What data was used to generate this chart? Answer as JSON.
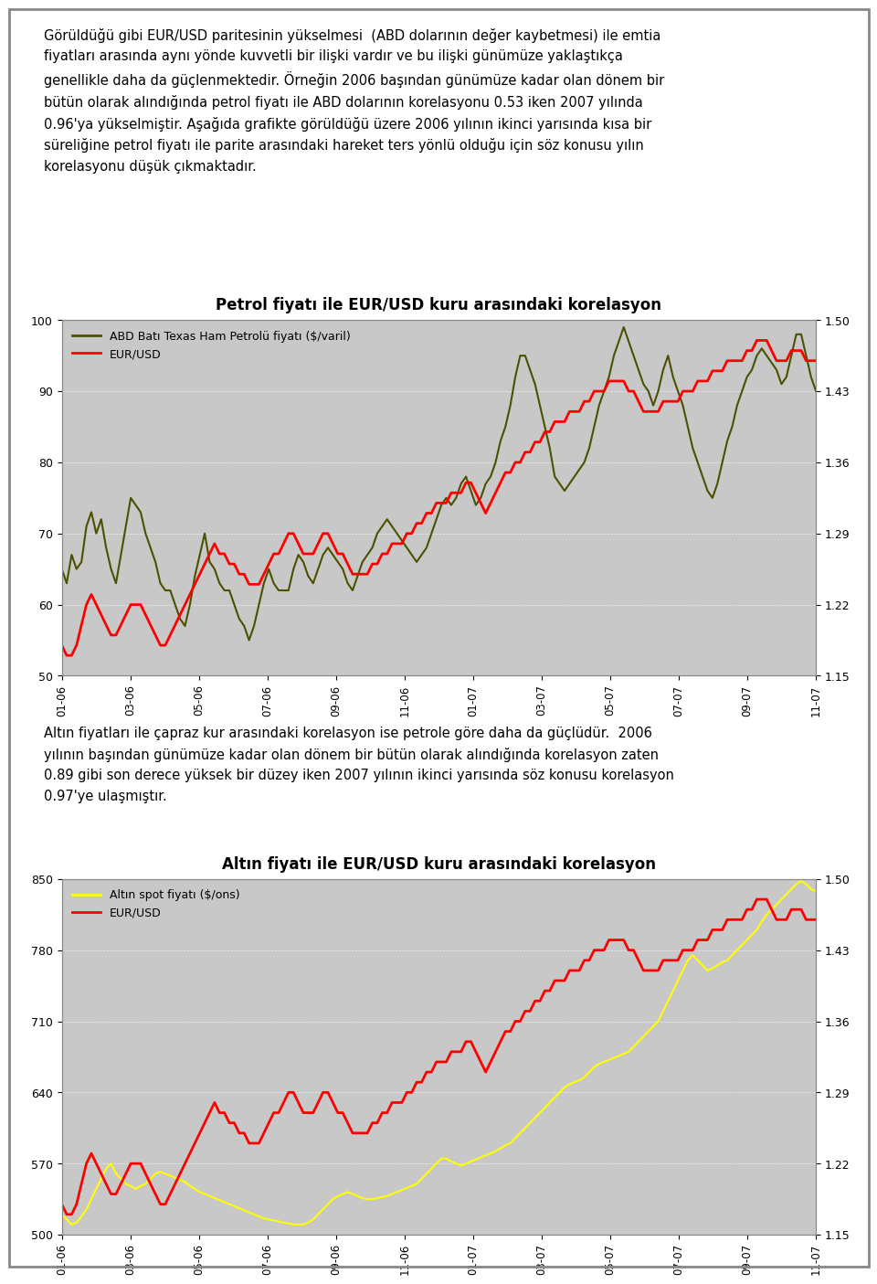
{
  "page_bg": "#ffffff",
  "border_color": "#888888",
  "chart_bg": "#c8c8c8",
  "text_color": "#000000",
  "paragraph1": "Görüldüğü gibi EUR/USD paritesinin yükselmesi  (ABD dolarının değer kaybetmesi) ile emtia\nfiyatları arasında aynı yönde kuvvetli bir ilişki vardır ve bu ilişki günümüze yaklaştıkça\ngenellikle daha da güçlenmektedir. Örneğin 2006 başından günümüze kadar olan dönem bir\nbütün olarak alındığında petrol fiyatı ile ABD dolarının korelasyonu 0.53 iken 2007 yılında\n0.96'ya yükselmiştir. Aşağıda grafikte görüldüğü üzere 2006 yılının ikinci yarısında kısa bir\nsüreliğine petrol fiyatı ile parite arasındaki hareket ters yönlü olduğu için söz konusu yılın\nkorelasyonu düşük çıkmaktadır.",
  "paragraph2": "Altın fiyatları ile çapraz kur arasındaki korelasyon ise petrole göre daha da güçlüdür.  2006\nyılının başından günümüze kadar olan dönem bir bütün olarak alındığında korelasyon zaten\n0.89 gibi son derece yüksek bir düzey iken 2007 yılının ikinci yarısında söz konusu korelasyon\n0.97'ye ulaşmıştır.",
  "chart1": {
    "title": "Petrol fiyatı ile EUR/USD kuru arasındaki korelasyon",
    "left_label": "",
    "right_label": "",
    "yleft_min": 50,
    "yleft_max": 100,
    "yright_min": 1.15,
    "yright_max": 1.5,
    "ytick_left": [
      50,
      60,
      70,
      80,
      90,
      100
    ],
    "ytick_right": [
      1.15,
      1.22,
      1.29,
      1.36,
      1.43,
      1.5
    ],
    "xtick_labels": [
      "01-06",
      "03-06",
      "05-06",
      "07-06",
      "09-06",
      "11-06",
      "01-07",
      "03-07",
      "05-07",
      "07-07",
      "09-07",
      "11-07"
    ],
    "line1_color": "#4d5000",
    "line1_label": "ABD Batı Texas Ham Petrolü fiyatı ($/varil)",
    "line2_color": "#ff0000",
    "line2_label": "EUR/USD",
    "oil_data": [
      65,
      63,
      67,
      65,
      66,
      71,
      73,
      70,
      72,
      68,
      65,
      63,
      67,
      71,
      75,
      74,
      73,
      70,
      68,
      66,
      63,
      62,
      62,
      60,
      58,
      57,
      60,
      64,
      67,
      70,
      66,
      65,
      63,
      62,
      62,
      60,
      58,
      57,
      55,
      57,
      60,
      63,
      65,
      63,
      62,
      62,
      62,
      65,
      67,
      66,
      64,
      63,
      65,
      67,
      68,
      67,
      66,
      65,
      63,
      62,
      64,
      66,
      67,
      68,
      70,
      71,
      72,
      71,
      70,
      69,
      68,
      67,
      66,
      67,
      68,
      70,
      72,
      74,
      75,
      74,
      75,
      77,
      78,
      76,
      74,
      75,
      77,
      78,
      80,
      83,
      85,
      88,
      92,
      95,
      95,
      93,
      91,
      88,
      85,
      82,
      78,
      77,
      76,
      77,
      78,
      79,
      80,
      82,
      85,
      88,
      90,
      92,
      95,
      97,
      99,
      97,
      95,
      93,
      91,
      90,
      88,
      90,
      93,
      95,
      92,
      90,
      88,
      85,
      82,
      80,
      78,
      76,
      75,
      77,
      80,
      83,
      85,
      88,
      90,
      92,
      93,
      95,
      96,
      95,
      94,
      93,
      91,
      92,
      95,
      98,
      98,
      95,
      92,
      90
    ],
    "eurusd_data": [
      1.18,
      1.17,
      1.17,
      1.18,
      1.2,
      1.22,
      1.23,
      1.22,
      1.21,
      1.2,
      1.19,
      1.19,
      1.2,
      1.21,
      1.22,
      1.22,
      1.22,
      1.21,
      1.2,
      1.19,
      1.18,
      1.18,
      1.19,
      1.2,
      1.21,
      1.22,
      1.23,
      1.24,
      1.25,
      1.26,
      1.27,
      1.28,
      1.27,
      1.27,
      1.26,
      1.26,
      1.25,
      1.25,
      1.24,
      1.24,
      1.24,
      1.25,
      1.26,
      1.27,
      1.27,
      1.28,
      1.29,
      1.29,
      1.28,
      1.27,
      1.27,
      1.27,
      1.28,
      1.29,
      1.29,
      1.28,
      1.27,
      1.27,
      1.26,
      1.25,
      1.25,
      1.25,
      1.25,
      1.26,
      1.26,
      1.27,
      1.27,
      1.28,
      1.28,
      1.28,
      1.29,
      1.29,
      1.3,
      1.3,
      1.31,
      1.31,
      1.32,
      1.32,
      1.32,
      1.33,
      1.33,
      1.33,
      1.34,
      1.34,
      1.33,
      1.32,
      1.31,
      1.32,
      1.33,
      1.34,
      1.35,
      1.35,
      1.36,
      1.36,
      1.37,
      1.37,
      1.38,
      1.38,
      1.39,
      1.39,
      1.4,
      1.4,
      1.4,
      1.41,
      1.41,
      1.41,
      1.42,
      1.42,
      1.43,
      1.43,
      1.43,
      1.44,
      1.44,
      1.44,
      1.44,
      1.43,
      1.43,
      1.42,
      1.41,
      1.41,
      1.41,
      1.41,
      1.42,
      1.42,
      1.42,
      1.42,
      1.43,
      1.43,
      1.43,
      1.44,
      1.44,
      1.44,
      1.45,
      1.45,
      1.45,
      1.46,
      1.46,
      1.46,
      1.46,
      1.47,
      1.47,
      1.48,
      1.48,
      1.48,
      1.47,
      1.46,
      1.46,
      1.46,
      1.47,
      1.47,
      1.47,
      1.46,
      1.46,
      1.46
    ]
  },
  "chart2": {
    "title": "Altın fiyatı ile EUR/USD kuru arasındaki korelasyon",
    "yleft_min": 500,
    "yleft_max": 850,
    "yright_min": 1.15,
    "yright_max": 1.5,
    "ytick_left": [
      500,
      570,
      640,
      710,
      780,
      850
    ],
    "ytick_right": [
      1.15,
      1.22,
      1.29,
      1.36,
      1.43,
      1.5
    ],
    "xtick_labels": [
      "01-06",
      "03-06",
      "05-06",
      "07-06",
      "09-06",
      "11-06",
      "01-07",
      "03-07",
      "05-07",
      "07-07",
      "09-07",
      "11-07"
    ],
    "line1_color": "#ffff00",
    "line1_label": "Altın spot fiyatı ($/ons)",
    "line2_color": "#ff0000",
    "line2_label": "EUR/USD",
    "gold_data": [
      520,
      515,
      510,
      512,
      518,
      525,
      535,
      545,
      555,
      565,
      570,
      560,
      555,
      550,
      548,
      545,
      548,
      550,
      555,
      560,
      562,
      560,
      558,
      556,
      554,
      552,
      548,
      545,
      542,
      540,
      538,
      536,
      534,
      532,
      530,
      528,
      526,
      524,
      522,
      520,
      518,
      516,
      515,
      514,
      513,
      512,
      511,
      510,
      510,
      510,
      512,
      515,
      520,
      525,
      530,
      535,
      538,
      540,
      542,
      540,
      538,
      536,
      535,
      535,
      536,
      537,
      538,
      540,
      542,
      544,
      546,
      548,
      550,
      555,
      560,
      565,
      570,
      575,
      575,
      572,
      570,
      568,
      570,
      572,
      574,
      576,
      578,
      580,
      582,
      585,
      588,
      590,
      595,
      600,
      605,
      610,
      615,
      620,
      625,
      630,
      635,
      640,
      645,
      648,
      650,
      652,
      655,
      660,
      665,
      668,
      670,
      672,
      674,
      676,
      678,
      680,
      685,
      690,
      695,
      700,
      705,
      710,
      720,
      730,
      740,
      750,
      760,
      770,
      775,
      770,
      765,
      760,
      762,
      765,
      768,
      770,
      775,
      780,
      785,
      790,
      795,
      800,
      808,
      815,
      820,
      825,
      830,
      835,
      840,
      845,
      848,
      845,
      840,
      838
    ],
    "eurusd_data": [
      1.18,
      1.17,
      1.17,
      1.18,
      1.2,
      1.22,
      1.23,
      1.22,
      1.21,
      1.2,
      1.19,
      1.19,
      1.2,
      1.21,
      1.22,
      1.22,
      1.22,
      1.21,
      1.2,
      1.19,
      1.18,
      1.18,
      1.19,
      1.2,
      1.21,
      1.22,
      1.23,
      1.24,
      1.25,
      1.26,
      1.27,
      1.28,
      1.27,
      1.27,
      1.26,
      1.26,
      1.25,
      1.25,
      1.24,
      1.24,
      1.24,
      1.25,
      1.26,
      1.27,
      1.27,
      1.28,
      1.29,
      1.29,
      1.28,
      1.27,
      1.27,
      1.27,
      1.28,
      1.29,
      1.29,
      1.28,
      1.27,
      1.27,
      1.26,
      1.25,
      1.25,
      1.25,
      1.25,
      1.26,
      1.26,
      1.27,
      1.27,
      1.28,
      1.28,
      1.28,
      1.29,
      1.29,
      1.3,
      1.3,
      1.31,
      1.31,
      1.32,
      1.32,
      1.32,
      1.33,
      1.33,
      1.33,
      1.34,
      1.34,
      1.33,
      1.32,
      1.31,
      1.32,
      1.33,
      1.34,
      1.35,
      1.35,
      1.36,
      1.36,
      1.37,
      1.37,
      1.38,
      1.38,
      1.39,
      1.39,
      1.4,
      1.4,
      1.4,
      1.41,
      1.41,
      1.41,
      1.42,
      1.42,
      1.43,
      1.43,
      1.43,
      1.44,
      1.44,
      1.44,
      1.44,
      1.43,
      1.43,
      1.42,
      1.41,
      1.41,
      1.41,
      1.41,
      1.42,
      1.42,
      1.42,
      1.42,
      1.43,
      1.43,
      1.43,
      1.44,
      1.44,
      1.44,
      1.45,
      1.45,
      1.45,
      1.46,
      1.46,
      1.46,
      1.46,
      1.47,
      1.47,
      1.48,
      1.48,
      1.48,
      1.47,
      1.46,
      1.46,
      1.46,
      1.47,
      1.47,
      1.47,
      1.46,
      1.46,
      1.46
    ]
  }
}
